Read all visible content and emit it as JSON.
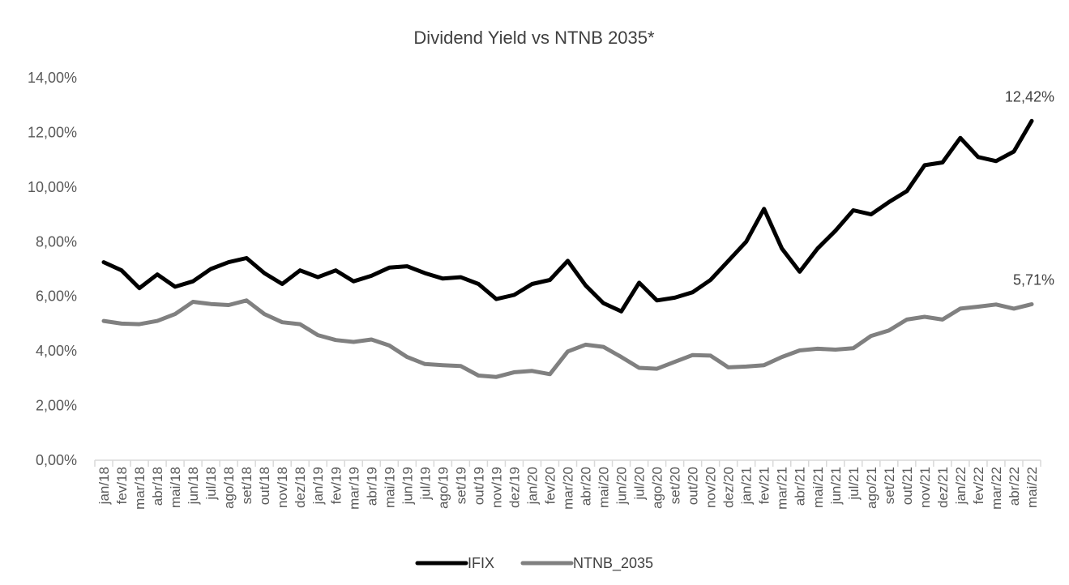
{
  "chart_data": {
    "type": "line",
    "title": "Dividend Yield vs NTNB 2035*",
    "xlabel": "",
    "ylabel": "",
    "ylim": [
      0,
      14
    ],
    "y_tick_values": [
      0,
      2,
      4,
      6,
      8,
      10,
      12,
      14
    ],
    "y_tick_labels": [
      "0,00%",
      "2,00%",
      "4,00%",
      "6,00%",
      "8,00%",
      "10,00%",
      "12,00%",
      "14,00%"
    ],
    "grid": false,
    "legend_position": "bottom",
    "categories": [
      "jan/18",
      "fev/18",
      "mar/18",
      "abr/18",
      "mai/18",
      "jun/18",
      "jul/18",
      "ago/18",
      "set/18",
      "out/18",
      "nov/18",
      "dez/18",
      "jan/19",
      "fev/19",
      "mar/19",
      "abr/19",
      "mai/19",
      "jun/19",
      "jul/19",
      "ago/19",
      "set/19",
      "out/19",
      "nov/19",
      "dez/19",
      "jan/20",
      "fev/20",
      "mar/20",
      "abr/20",
      "mai/20",
      "jun/20",
      "jul/20",
      "ago/20",
      "set/20",
      "out/20",
      "nov/20",
      "dez/20",
      "jan/21",
      "fev/21",
      "mar/21",
      "abr/21",
      "mai/21",
      "jun/21",
      "jul/21",
      "ago/21",
      "set/21",
      "out/21",
      "nov/21",
      "dez/21",
      "jan/22",
      "fev/22",
      "mar/22",
      "abr/22",
      "mai/22"
    ],
    "series": [
      {
        "name": "IFIX",
        "color": "#000000",
        "values": [
          7.25,
          6.95,
          6.3,
          6.8,
          6.35,
          6.55,
          7.0,
          7.25,
          7.4,
          6.85,
          6.45,
          6.95,
          6.7,
          6.95,
          6.55,
          6.75,
          7.05,
          7.1,
          6.85,
          6.65,
          6.7,
          6.45,
          5.9,
          6.05,
          6.45,
          6.6,
          7.3,
          6.4,
          5.75,
          5.45,
          6.5,
          5.85,
          5.95,
          6.15,
          6.6,
          7.3,
          8.0,
          9.2,
          7.75,
          6.9,
          7.75,
          8.4,
          9.15,
          9.0,
          9.45,
          9.85,
          10.8,
          10.9,
          11.8,
          11.1,
          10.95,
          11.3,
          12.42
        ],
        "end_label": "12,42%"
      },
      {
        "name": "NTNB_2035",
        "color": "#808080",
        "values": [
          5.1,
          5.0,
          4.98,
          5.1,
          5.35,
          5.8,
          5.72,
          5.68,
          5.85,
          5.35,
          5.05,
          4.98,
          4.58,
          4.4,
          4.33,
          4.42,
          4.2,
          3.78,
          3.52,
          3.48,
          3.45,
          3.1,
          3.05,
          3.22,
          3.27,
          3.15,
          3.98,
          4.23,
          4.15,
          3.78,
          3.38,
          3.35,
          3.6,
          3.85,
          3.83,
          3.4,
          3.43,
          3.48,
          3.78,
          4.02,
          4.08,
          4.05,
          4.1,
          4.55,
          4.75,
          5.15,
          5.25,
          5.15,
          5.55,
          5.62,
          5.7,
          5.55,
          5.71
        ],
        "end_label": "5,71%"
      }
    ]
  }
}
